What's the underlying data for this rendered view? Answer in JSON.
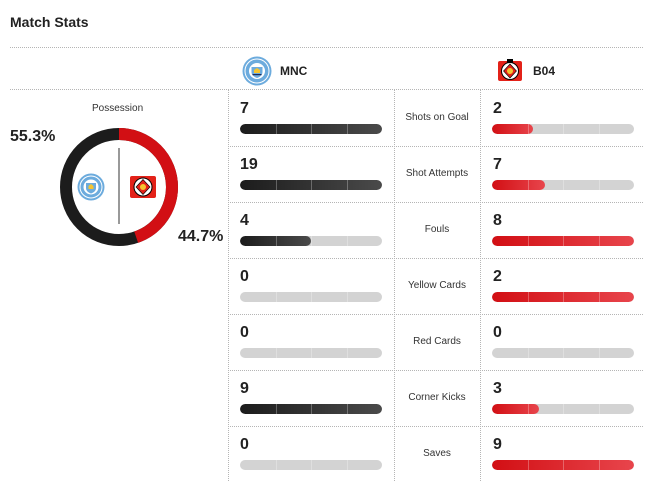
{
  "header": {
    "title": "Match Stats"
  },
  "teams": {
    "home": {
      "abbr": "MNC",
      "primary_color": "#1c1c1c",
      "badge_color": "#6cabdd",
      "logo_icon": "manchester-city-crest-icon"
    },
    "away": {
      "abbr": "B04",
      "primary_color": "#d20f14",
      "logo_icon": "bayer-leverkusen-crest-icon"
    }
  },
  "possession": {
    "label": "Possession",
    "home_pct": 55.3,
    "away_pct": 44.7,
    "home_text": "55.3%",
    "away_text": "44.7%"
  },
  "stats": [
    {
      "label": "Shots on Goal",
      "home": 7,
      "away": 2,
      "home_fill": 1.0,
      "away_fill": 0.29
    },
    {
      "label": "Shot Attempts",
      "home": 19,
      "away": 7,
      "home_fill": 1.0,
      "away_fill": 0.37
    },
    {
      "label": "Fouls",
      "home": 4,
      "away": 8,
      "home_fill": 0.5,
      "away_fill": 1.0
    },
    {
      "label": "Yellow Cards",
      "home": 0,
      "away": 2,
      "home_fill": 0,
      "away_fill": 1.0
    },
    {
      "label": "Red Cards",
      "home": 0,
      "away": 0,
      "home_fill": 0,
      "away_fill": 0
    },
    {
      "label": "Corner Kicks",
      "home": 9,
      "away": 3,
      "home_fill": 1.0,
      "away_fill": 0.33
    },
    {
      "label": "Saves",
      "home": 0,
      "away": 9,
      "home_fill": 0,
      "away_fill": 1.0
    }
  ]
}
